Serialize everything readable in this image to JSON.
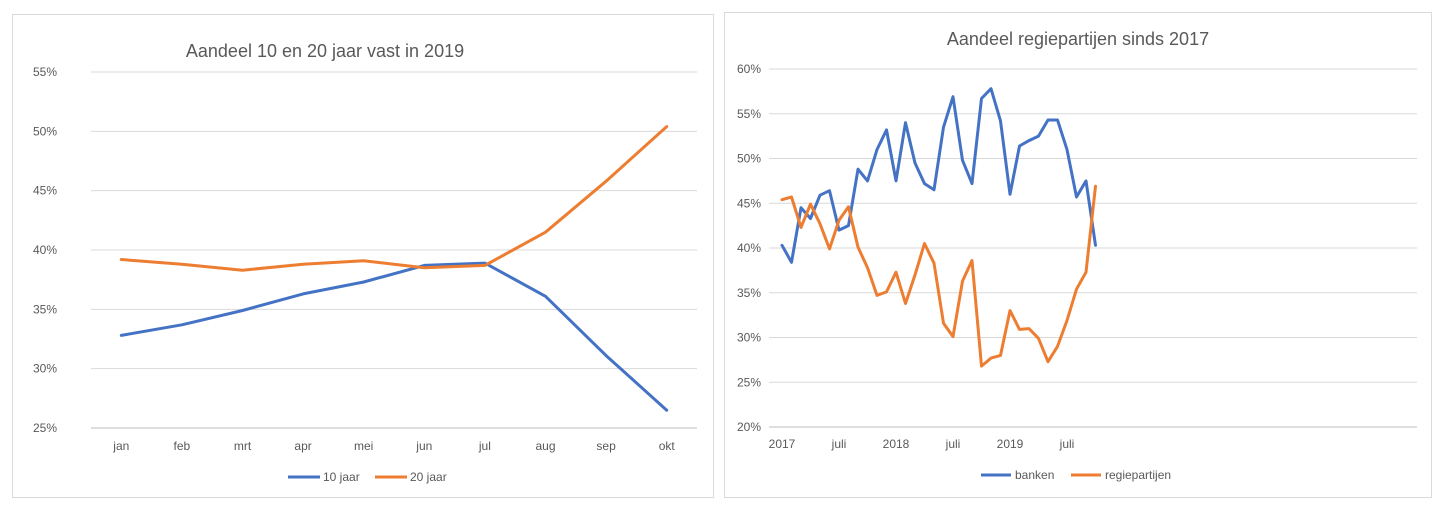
{
  "colors": {
    "blue": "#4472C4",
    "orange": "#ED7D31"
  },
  "chart_data": [
    {
      "type": "line",
      "title": "Aandeel 10 en 20 jaar vast in 2019",
      "xlabel": "",
      "ylabel": "",
      "categories": [
        "jan",
        "feb",
        "mrt",
        "apr",
        "mei",
        "jun",
        "jul",
        "aug",
        "sep",
        "okt"
      ],
      "ylim": [
        25,
        55
      ],
      "yticks": [
        "25%",
        "30%",
        "35%",
        "40%",
        "45%",
        "50%",
        "55%"
      ],
      "grid": true,
      "legend": "bottom",
      "series": [
        {
          "name": "10 jaar",
          "color": "#4472C4",
          "values": [
            32.8,
            33.7,
            34.9,
            36.3,
            37.3,
            38.7,
            38.9,
            36.1,
            31.1,
            26.5
          ]
        },
        {
          "name": "20 jaar",
          "color": "#ED7D31",
          "values": [
            39.2,
            38.8,
            38.3,
            38.8,
            39.1,
            38.5,
            38.7,
            41.5,
            45.8,
            50.4
          ]
        }
      ]
    },
    {
      "type": "line",
      "title": "Aandeel regiepartijen sinds 2017",
      "xlabel": "",
      "ylabel": "",
      "x_tick_labels": [
        "2017",
        "juli",
        "2018",
        "juli",
        "2019",
        "juli"
      ],
      "x_tick_months": [
        0,
        6,
        12,
        18,
        24,
        30
      ],
      "ylim": [
        20,
        60
      ],
      "yticks": [
        "20%",
        "25%",
        "30%",
        "35%",
        "40%",
        "45%",
        "50%",
        "55%",
        "60%"
      ],
      "grid": true,
      "legend": "bottom",
      "series": [
        {
          "name": "banken",
          "color": "#4472C4",
          "values": [
            40.3,
            38.4,
            44.5,
            43.3,
            45.9,
            46.4,
            42.0,
            42.5,
            48.8,
            47.5,
            51.0,
            53.2,
            47.5,
            54.0,
            49.5,
            47.2,
            46.5,
            53.5,
            56.9,
            49.8,
            47.2,
            56.7,
            57.8,
            54.2,
            46.0,
            51.4,
            52.0,
            52.5,
            54.3,
            54.3,
            51.0,
            45.7,
            47.5,
            40.3
          ]
        },
        {
          "name": "regiepartijen",
          "color": "#ED7D31",
          "values": [
            45.4,
            45.7,
            42.3,
            44.9,
            42.7,
            39.9,
            43.1,
            44.6,
            40.1,
            37.8,
            34.7,
            35.1,
            37.3,
            33.8,
            37.0,
            40.5,
            38.3,
            31.6,
            30.1,
            36.3,
            38.6,
            26.8,
            27.7,
            28.0,
            33.0,
            30.9,
            31.0,
            29.9,
            27.3,
            29.0,
            31.9,
            35.4,
            37.3,
            46.9
          ]
        }
      ]
    }
  ]
}
